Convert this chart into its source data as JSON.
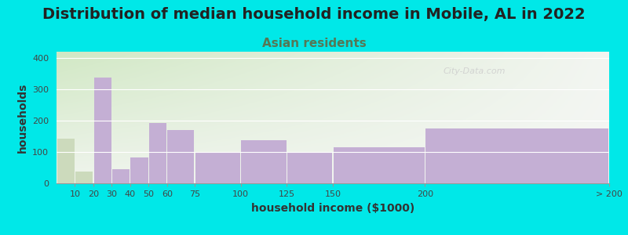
{
  "title": "Distribution of median household income in Mobile, AL in 2022",
  "subtitle": "Asian residents",
  "xlabel": "household income ($1000)",
  "ylabel": "households",
  "bar_edges": [
    0,
    10,
    20,
    30,
    40,
    50,
    60,
    75,
    100,
    125,
    150,
    200,
    300
  ],
  "bar_labels": [
    "10",
    "20",
    "30",
    "40",
    "50",
    "60",
    "75",
    "100",
    "125",
    "150",
    "200",
    "> 200"
  ],
  "values": [
    143,
    37,
    337,
    46,
    83,
    192,
    170,
    100,
    137,
    100,
    115,
    175
  ],
  "bar_color": "#c4afd4",
  "bar_color_light": "#ccdabc",
  "light_bar_indices": [
    0,
    1
  ],
  "background_color": "#00e8e8",
  "ylim": [
    0,
    420
  ],
  "yticks": [
    0,
    100,
    200,
    300,
    400
  ],
  "xtick_positions": [
    10,
    20,
    30,
    40,
    50,
    60,
    75,
    100,
    125,
    150,
    200,
    300
  ],
  "xtick_labels": [
    "10",
    "20",
    "30",
    "40",
    "50",
    "60",
    "75",
    "100",
    "125",
    "150",
    "200",
    "> 200"
  ],
  "watermark": "City-Data.com",
  "title_fontsize": 14,
  "subtitle_fontsize": 11,
  "subtitle_color": "#557755",
  "axis_label_fontsize": 10,
  "tick_fontsize": 8,
  "grad_color_topleft": [
    0.82,
    0.91,
    0.77
  ],
  "grad_color_bottomright": [
    0.97,
    0.97,
    0.97
  ]
}
